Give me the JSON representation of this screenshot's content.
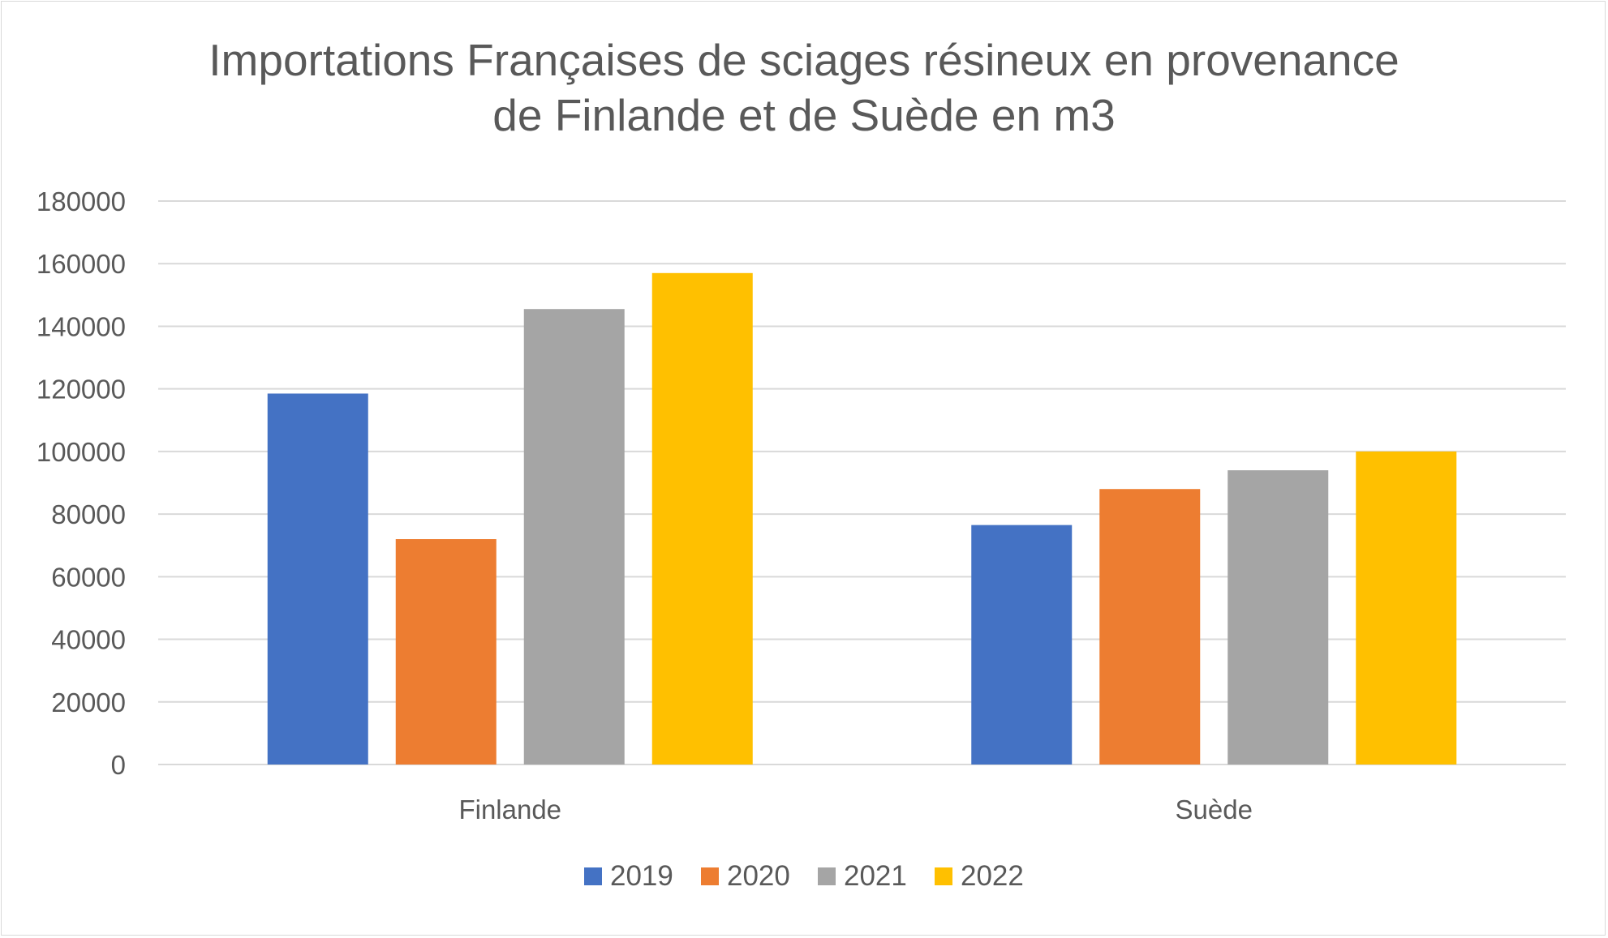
{
  "chart_data": {
    "type": "bar",
    "title": "Importations Françaises de sciages résineux en provenance\nde Finlande et de Suède en m3",
    "xlabel": "",
    "ylabel": "",
    "categories": [
      "Finlande",
      "Suède"
    ],
    "series": [
      {
        "name": "2019",
        "color": "#4472c4",
        "values": [
          118500,
          76500
        ]
      },
      {
        "name": "2020",
        "color": "#ed7d31",
        "values": [
          72000,
          88000
        ]
      },
      {
        "name": "2021",
        "color": "#a5a5a5",
        "values": [
          145500,
          94000
        ]
      },
      {
        "name": "2022",
        "color": "#ffc000",
        "values": [
          157000,
          100000
        ]
      }
    ],
    "ylim": [
      0,
      180000
    ],
    "yticks": [
      0,
      20000,
      40000,
      60000,
      80000,
      100000,
      120000,
      140000,
      160000,
      180000
    ],
    "grid": true,
    "legend": "bottom"
  }
}
